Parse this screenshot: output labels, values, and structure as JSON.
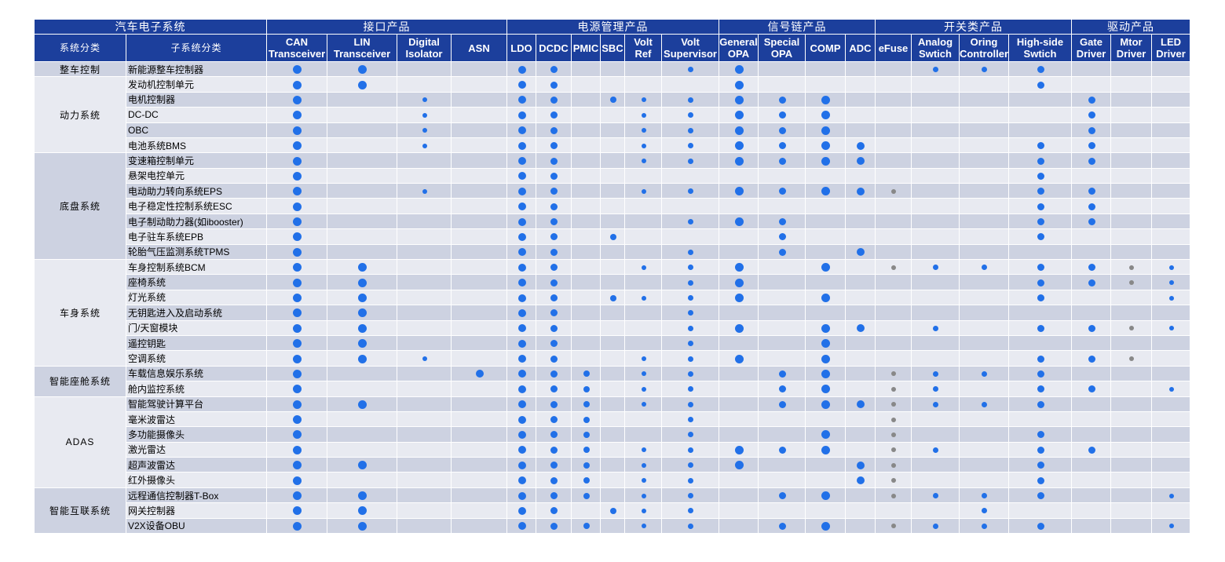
{
  "table": {
    "corner": "汽车电子系统",
    "col_headers": [
      "系统分类",
      "子系统分类"
    ],
    "header_groups": [
      {
        "label": "接口产品",
        "products": [
          "CAN Transceiver",
          "LIN Transceiver",
          "Digital Isolator",
          "ASN"
        ]
      },
      {
        "label": "电源管理产品",
        "products": [
          "LDO",
          "DCDC",
          "PMIC",
          "SBC",
          "Volt Ref",
          "Volt Supervisor"
        ]
      },
      {
        "label": "信号链产品",
        "products": [
          "General OPA",
          "Special OPA",
          "COMP",
          "ADC"
        ]
      },
      {
        "label": "开关类产品",
        "products": [
          "eFuse",
          "Analog Swtich",
          "Oring Controller",
          "High-side Swtich"
        ]
      },
      {
        "label": "驱动产品",
        "products": [
          "Gate Driver",
          "Mtor Driver",
          "LED Driver"
        ]
      }
    ],
    "groups": [
      {
        "name": "整车控制",
        "rows": [
          {
            "name": "新能源整车控制器",
            "marks": [
              "#2170e8",
              "#2170e8",
              null,
              null,
              "#2170e8",
              "#2170e8",
              null,
              null,
              null,
              "#2170e8",
              "#2170e8",
              null,
              null,
              null,
              null,
              "#2170e8",
              "#2170e8",
              "#2170e8",
              null,
              null,
              null
            ]
          }
        ]
      },
      {
        "name": "动力系统",
        "rows": [
          {
            "name": "发动机控制单元",
            "marks": [
              "#2170e8",
              "#2170e8",
              null,
              null,
              "#2170e8",
              "#2170e8",
              null,
              null,
              null,
              null,
              "#2170e8",
              null,
              null,
              null,
              null,
              null,
              null,
              "#2170e8",
              null,
              null,
              null
            ]
          },
          {
            "name": "电机控制器",
            "marks": [
              "#2170e8",
              null,
              "#2170e8",
              null,
              "#2170e8",
              "#2170e8",
              null,
              "#2170e8",
              "#2170e8",
              "#2170e8",
              "#2170e8",
              "#2170e8",
              "#2170e8",
              null,
              null,
              null,
              null,
              null,
              "#2170e8",
              null,
              null
            ]
          },
          {
            "name": "DC-DC",
            "marks": [
              "#2170e8",
              null,
              "#2170e8",
              null,
              "#2170e8",
              "#2170e8",
              null,
              null,
              "#2170e8",
              "#2170e8",
              "#2170e8",
              "#2170e8",
              "#2170e8",
              null,
              null,
              null,
              null,
              null,
              "#2170e8",
              null,
              null
            ]
          },
          {
            "name": "OBC",
            "marks": [
              "#2170e8",
              null,
              "#2170e8",
              null,
              "#2170e8",
              "#2170e8",
              null,
              null,
              "#2170e8",
              "#2170e8",
              "#2170e8",
              "#2170e8",
              "#2170e8",
              null,
              null,
              null,
              null,
              null,
              "#2170e8",
              null,
              null
            ]
          },
          {
            "name": "电池系统BMS",
            "marks": [
              "#2170e8",
              null,
              "#2170e8",
              null,
              "#2170e8",
              "#2170e8",
              null,
              null,
              "#2170e8",
              "#2170e8",
              "#2170e8",
              "#2170e8",
              "#2170e8",
              "#2170e8",
              null,
              null,
              null,
              "#2170e8",
              "#2170e8",
              null,
              null
            ]
          }
        ]
      },
      {
        "name": "底盘系统",
        "rows": [
          {
            "name": "变速箱控制单元",
            "marks": [
              "#2170e8",
              null,
              null,
              null,
              "#2170e8",
              "#2170e8",
              null,
              null,
              "#2170e8",
              "#2170e8",
              "#2170e8",
              "#2170e8",
              "#2170e8",
              "#2170e8",
              null,
              null,
              null,
              "#2170e8",
              "#2170e8",
              null,
              null
            ]
          },
          {
            "name": "悬架电控单元",
            "marks": [
              "#2170e8",
              null,
              null,
              null,
              "#2170e8",
              "#2170e8",
              null,
              null,
              null,
              null,
              null,
              null,
              null,
              null,
              null,
              null,
              null,
              "#2170e8",
              null,
              null,
              null
            ]
          },
          {
            "name": "电动助力转向系统EPS",
            "marks": [
              "#2170e8",
              null,
              "#2170e8",
              null,
              "#2170e8",
              "#2170e8",
              null,
              null,
              "#2170e8",
              "#2170e8",
              "#2170e8",
              "#2170e8",
              "#2170e8",
              "#2170e8",
              "#888888",
              null,
              null,
              "#2170e8",
              "#2170e8",
              null,
              null
            ]
          },
          {
            "name": "电子稳定性控制系统ESC",
            "marks": [
              "#2170e8",
              null,
              null,
              null,
              "#2170e8",
              "#2170e8",
              null,
              null,
              null,
              null,
              null,
              null,
              null,
              null,
              null,
              null,
              null,
              "#2170e8",
              "#2170e8",
              null,
              null
            ]
          },
          {
            "name": "电子制动助力器(如ibooster)",
            "marks": [
              "#2170e8",
              null,
              null,
              null,
              "#2170e8",
              "#2170e8",
              null,
              null,
              null,
              "#2170e8",
              "#2170e8",
              "#2170e8",
              null,
              null,
              null,
              null,
              null,
              "#2170e8",
              "#2170e8",
              null,
              null
            ]
          },
          {
            "name": "电子驻车系统EPB",
            "marks": [
              "#2170e8",
              null,
              null,
              null,
              "#2170e8",
              "#2170e8",
              null,
              "#2170e8",
              null,
              null,
              null,
              "#2170e8",
              null,
              null,
              null,
              null,
              null,
              "#2170e8",
              null,
              null,
              null
            ]
          },
          {
            "name": "轮胎气压监测系统TPMS",
            "marks": [
              "#2170e8",
              null,
              null,
              null,
              "#2170e8",
              "#2170e8",
              null,
              null,
              null,
              "#2170e8",
              null,
              "#2170e8",
              null,
              "#2170e8",
              null,
              null,
              null,
              null,
              null,
              null,
              null
            ]
          }
        ]
      },
      {
        "name": "车身系统",
        "rows": [
          {
            "name": "车身控制系统BCM",
            "marks": [
              "#2170e8",
              "#2170e8",
              null,
              null,
              "#2170e8",
              "#2170e8",
              null,
              null,
              "#2170e8",
              "#2170e8",
              "#2170e8",
              null,
              "#2170e8",
              null,
              "#888888",
              "#2170e8",
              "#2170e8",
              "#2170e8",
              "#2170e8",
              "#888888",
              "#2170e8"
            ]
          },
          {
            "name": "座椅系统",
            "marks": [
              "#2170e8",
              "#2170e8",
              null,
              null,
              "#2170e8",
              "#2170e8",
              null,
              null,
              null,
              "#2170e8",
              "#2170e8",
              null,
              null,
              null,
              null,
              null,
              null,
              "#2170e8",
              "#2170e8",
              "#888888",
              "#2170e8"
            ]
          },
          {
            "name": "灯光系统",
            "marks": [
              "#2170e8",
              "#2170e8",
              null,
              null,
              "#2170e8",
              "#2170e8",
              null,
              "#2170e8",
              "#2170e8",
              "#2170e8",
              "#2170e8",
              null,
              "#2170e8",
              null,
              null,
              null,
              null,
              "#2170e8",
              null,
              null,
              "#2170e8"
            ]
          },
          {
            "name": "无钥匙进入及启动系统",
            "marks": [
              "#2170e8",
              "#2170e8",
              null,
              null,
              "#2170e8",
              "#2170e8",
              null,
              null,
              null,
              "#2170e8",
              null,
              null,
              null,
              null,
              null,
              null,
              null,
              null,
              null,
              null,
              null
            ]
          },
          {
            "name": "门/天窗模块",
            "marks": [
              "#2170e8",
              "#2170e8",
              null,
              null,
              "#2170e8",
              "#2170e8",
              null,
              null,
              null,
              "#2170e8",
              "#2170e8",
              null,
              "#2170e8",
              "#2170e8",
              null,
              "#2170e8",
              null,
              "#2170e8",
              "#2170e8",
              "#888888",
              "#2170e8"
            ]
          },
          {
            "name": "遥控钥匙",
            "marks": [
              "#2170e8",
              "#2170e8",
              null,
              null,
              "#2170e8",
              "#2170e8",
              null,
              null,
              null,
              "#2170e8",
              null,
              null,
              "#2170e8",
              null,
              null,
              null,
              null,
              null,
              null,
              null,
              null
            ]
          },
          {
            "name": "空调系统",
            "marks": [
              "#2170e8",
              "#2170e8",
              "#2170e8",
              null,
              "#2170e8",
              "#2170e8",
              null,
              null,
              "#2170e8",
              "#2170e8",
              "#2170e8",
              null,
              "#2170e8",
              null,
              null,
              null,
              null,
              "#2170e8",
              "#2170e8",
              "#888888",
              null
            ]
          }
        ]
      },
      {
        "name": "智能座舱系统",
        "rows": [
          {
            "name": "车载信息娱乐系统",
            "marks": [
              "#2170e8",
              null,
              null,
              "#2170e8",
              "#2170e8",
              "#2170e8",
              "#2170e8",
              null,
              "#2170e8",
              "#2170e8",
              null,
              "#2170e8",
              "#2170e8",
              null,
              "#888888",
              "#2170e8",
              "#2170e8",
              "#2170e8",
              null,
              null,
              null
            ]
          },
          {
            "name": "舱内监控系统",
            "marks": [
              "#2170e8",
              null,
              null,
              null,
              "#2170e8",
              "#2170e8",
              "#2170e8",
              null,
              "#2170e8",
              "#2170e8",
              null,
              "#2170e8",
              "#2170e8",
              null,
              "#888888",
              "#2170e8",
              null,
              "#2170e8",
              "#2170e8",
              null,
              "#2170e8"
            ]
          }
        ]
      },
      {
        "name": "ADAS",
        "rows": [
          {
            "name": "智能驾驶计算平台",
            "marks": [
              "#2170e8",
              "#2170e8",
              null,
              null,
              "#2170e8",
              "#2170e8",
              "#2170e8",
              null,
              "#2170e8",
              "#2170e8",
              null,
              "#2170e8",
              "#2170e8",
              "#2170e8",
              "#888888",
              "#2170e8",
              "#2170e8",
              "#2170e8",
              null,
              null,
              null
            ]
          },
          {
            "name": "毫米波雷达",
            "marks": [
              "#2170e8",
              null,
              null,
              null,
              "#2170e8",
              "#2170e8",
              "#2170e8",
              null,
              null,
              "#2170e8",
              null,
              null,
              null,
              null,
              "#888888",
              null,
              null,
              null,
              null,
              null,
              null
            ]
          },
          {
            "name": "多功能摄像头",
            "marks": [
              "#2170e8",
              null,
              null,
              null,
              "#2170e8",
              "#2170e8",
              "#2170e8",
              null,
              null,
              "#2170e8",
              null,
              null,
              "#2170e8",
              null,
              "#888888",
              null,
              null,
              "#2170e8",
              null,
              null,
              null
            ]
          },
          {
            "name": "激光雷达",
            "marks": [
              "#2170e8",
              null,
              null,
              null,
              "#2170e8",
              "#2170e8",
              "#2170e8",
              null,
              "#2170e8",
              "#2170e8",
              "#2170e8",
              "#2170e8",
              "#2170e8",
              null,
              "#888888",
              "#2170e8",
              null,
              "#2170e8",
              "#2170e8",
              null,
              null
            ]
          },
          {
            "name": "超声波雷达",
            "marks": [
              "#2170e8",
              "#2170e8",
              null,
              null,
              "#2170e8",
              "#2170e8",
              "#2170e8",
              null,
              "#2170e8",
              "#2170e8",
              "#2170e8",
              null,
              null,
              "#2170e8",
              "#888888",
              null,
              null,
              "#2170e8",
              null,
              null,
              null
            ]
          },
          {
            "name": "红外摄像头",
            "marks": [
              "#2170e8",
              null,
              null,
              null,
              "#2170e8",
              "#2170e8",
              "#2170e8",
              null,
              "#2170e8",
              "#2170e8",
              null,
              null,
              null,
              "#2170e8",
              "#888888",
              null,
              null,
              "#2170e8",
              null,
              null,
              null
            ]
          }
        ]
      },
      {
        "name": "智能互联系统",
        "rows": [
          {
            "name": "远程通信控制器T-Box",
            "marks": [
              "#2170e8",
              "#2170e8",
              null,
              null,
              "#2170e8",
              "#2170e8",
              "#2170e8",
              null,
              "#2170e8",
              "#2170e8",
              null,
              "#2170e8",
              "#2170e8",
              null,
              "#888888",
              "#2170e8",
              "#2170e8",
              "#2170e8",
              null,
              null,
              "#2170e8"
            ]
          },
          {
            "name": "网关控制器",
            "marks": [
              "#2170e8",
              "#2170e8",
              null,
              null,
              "#2170e8",
              "#2170e8",
              null,
              "#2170e8",
              "#2170e8",
              "#2170e8",
              null,
              null,
              null,
              null,
              null,
              null,
              "#2170e8",
              null,
              null,
              null,
              null
            ]
          },
          {
            "name": "V2X设备OBU",
            "marks": [
              "#2170e8",
              "#2170e8",
              null,
              null,
              "#2170e8",
              "#2170e8",
              "#2170e8",
              null,
              "#2170e8",
              "#2170e8",
              null,
              "#2170e8",
              "#2170e8",
              null,
              "#888888",
              "#2170e8",
              "#2170e8",
              "#2170e8",
              null,
              null,
              "#2170e8"
            ]
          }
        ]
      }
    ]
  }
}
